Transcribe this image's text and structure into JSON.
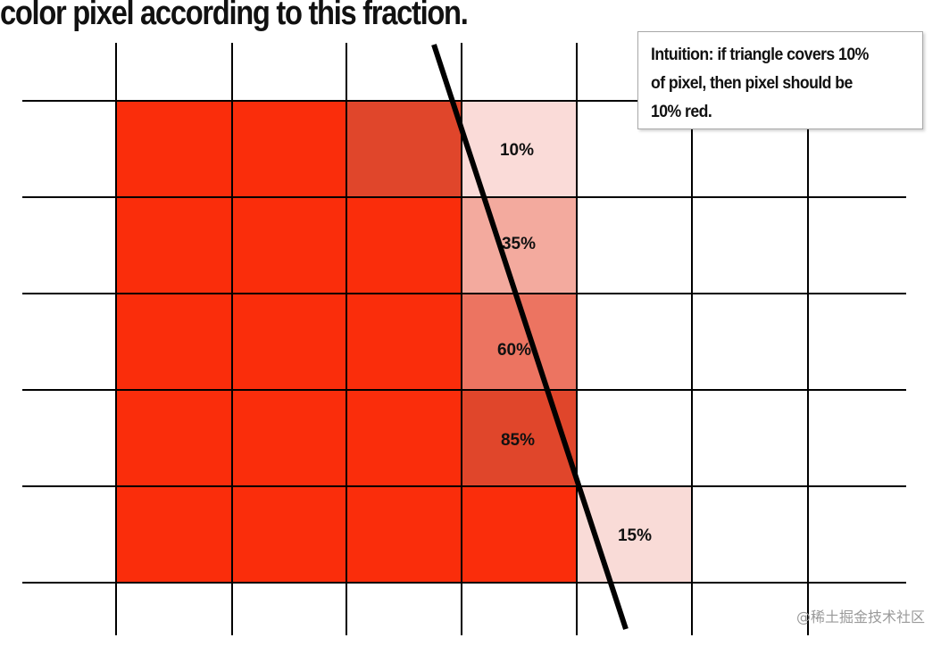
{
  "title": "color pixel according to this fraction.",
  "callout": {
    "line1": "Intuition: if triangle covers 10%",
    "line2": "of pixel, then pixel should be",
    "line3": "10% red."
  },
  "watermark": "@稀土掘金技术社区",
  "colors": {
    "full_red": "#fa2d0b",
    "dark_red": "#e0462b",
    "pct_10": "#fadbd8",
    "pct_35": "#f3aa9e",
    "pct_60": "#ec7461",
    "pct_85": "#e0462b",
    "pct_15": "#f9dbd7",
    "grid_line": "#000000",
    "edge_line": "#000000"
  },
  "coverage_labels": [
    {
      "label": "10%",
      "coverage": 0.1,
      "row": 0,
      "col": 3
    },
    {
      "label": "35%",
      "coverage": 0.35,
      "row": 1,
      "col": 3
    },
    {
      "label": "60%",
      "coverage": 0.6,
      "row": 2,
      "col": 3
    },
    {
      "label": "85%",
      "coverage": 0.85,
      "row": 3,
      "col": 3
    },
    {
      "label": "15%",
      "coverage": 0.15,
      "row": 4,
      "col": 4
    }
  ]
}
